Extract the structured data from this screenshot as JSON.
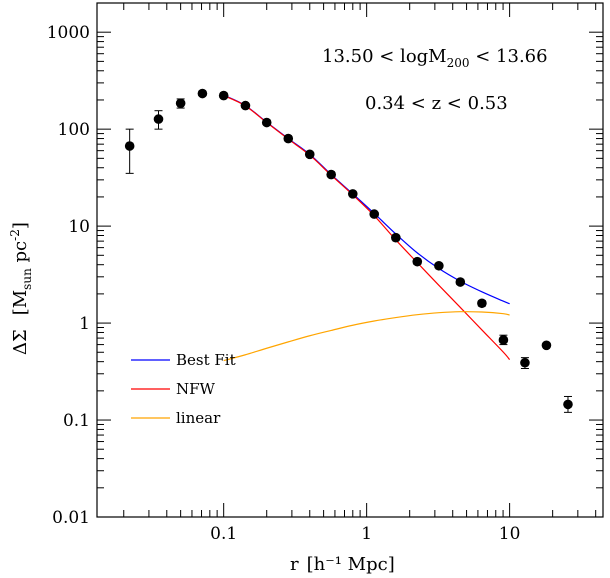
{
  "chart_data": {
    "type": "scatter",
    "xlabel_main": "r",
    "xlabel_unit": "[h⁻¹ Mpc]",
    "ylabel_main": "ΔΣ",
    "ylabel_unit_open": "[M",
    "ylabel_unit_sub": "sun",
    "ylabel_unit_mid": "  pc",
    "ylabel_unit_sup": "-2",
    "ylabel_unit_close": "]",
    "x_scale": "log",
    "y_scale": "log",
    "xlim": [
      0.013,
      45
    ],
    "ylim": [
      0.01,
      2000
    ],
    "x_ticks": [
      {
        "value": 0.1,
        "label": "0.1"
      },
      {
        "value": 1,
        "label": "1"
      },
      {
        "value": 10,
        "label": "10"
      }
    ],
    "y_ticks": [
      {
        "value": 0.01,
        "label": "0.01"
      },
      {
        "value": 0.1,
        "label": "0.1"
      },
      {
        "value": 1,
        "label": "1"
      },
      {
        "value": 10,
        "label": "10"
      },
      {
        "value": 100,
        "label": "100"
      },
      {
        "value": 1000,
        "label": "1000"
      }
    ],
    "annotations": {
      "mass_left": "13.50  <  logM",
      "mass_sub": "200",
      "mass_right": "  <  13.66",
      "redshift": "0.34  <  z  <  0.53"
    },
    "points": [
      {
        "x": 0.022,
        "y": 67,
        "lo": 35,
        "hi": 100
      },
      {
        "x": 0.035,
        "y": 127,
        "lo": 100,
        "hi": 155
      },
      {
        "x": 0.05,
        "y": 185,
        "lo": 165,
        "hi": 205
      },
      {
        "x": 0.071,
        "y": 233,
        "lo": 222,
        "hi": 244
      },
      {
        "x": 0.1,
        "y": 222,
        "lo": 212,
        "hi": 232
      },
      {
        "x": 0.142,
        "y": 175,
        "lo": 168,
        "hi": 182
      },
      {
        "x": 0.2,
        "y": 117,
        "lo": 112,
        "hi": 122
      },
      {
        "x": 0.283,
        "y": 80,
        "lo": 76,
        "hi": 84
      },
      {
        "x": 0.4,
        "y": 55,
        "lo": 52.5,
        "hi": 57.5
      },
      {
        "x": 0.565,
        "y": 34,
        "lo": 32.5,
        "hi": 35.5
      },
      {
        "x": 0.8,
        "y": 21.5,
        "lo": 20.5,
        "hi": 22.5
      },
      {
        "x": 1.13,
        "y": 13.3,
        "lo": 12.7,
        "hi": 13.9
      },
      {
        "x": 1.6,
        "y": 7.6,
        "lo": 7.2,
        "hi": 8.0
      },
      {
        "x": 2.26,
        "y": 4.3,
        "lo": 4.05,
        "hi": 4.55
      },
      {
        "x": 3.2,
        "y": 3.9,
        "lo": 3.7,
        "hi": 4.1
      },
      {
        "x": 4.52,
        "y": 2.65,
        "lo": 2.5,
        "hi": 2.8
      },
      {
        "x": 6.4,
        "y": 1.6,
        "lo": 1.5,
        "hi": 1.7
      },
      {
        "x": 9.05,
        "y": 0.67,
        "lo": 0.6,
        "hi": 0.75
      },
      {
        "x": 12.8,
        "y": 0.39,
        "lo": 0.34,
        "hi": 0.44
      },
      {
        "x": 18.1,
        "y": 0.59,
        "lo": 0.56,
        "hi": 0.62
      },
      {
        "x": 25.6,
        "y": 0.145,
        "lo": 0.12,
        "hi": 0.175
      }
    ],
    "series": [
      {
        "name": "Best Fit",
        "color": "#0000ff",
        "x": [
          0.1,
          0.141,
          0.2,
          0.283,
          0.4,
          0.565,
          0.8,
          1.13,
          1.6,
          2.26,
          3.2,
          4.52,
          6.4,
          9.05,
          10
        ],
        "y": [
          224,
          176,
          118,
          80,
          55,
          34,
          21.5,
          13.5,
          8.3,
          5.3,
          3.65,
          2.7,
          2.1,
          1.68,
          1.58
        ]
      },
      {
        "name": "NFW",
        "color": "#ff0000",
        "x": [
          0.1,
          0.141,
          0.2,
          0.283,
          0.4,
          0.565,
          0.8,
          1.13,
          1.6,
          2.26,
          3.2,
          4.52,
          6.4,
          9.05,
          10
        ],
        "y": [
          222,
          175,
          117,
          79,
          54,
          33.5,
          21,
          12.8,
          7.2,
          4.2,
          2.45,
          1.45,
          0.85,
          0.5,
          0.42
        ]
      },
      {
        "name": "linear",
        "color": "#ffa500",
        "x": [
          0.1,
          0.141,
          0.2,
          0.283,
          0.4,
          0.565,
          0.8,
          1.13,
          1.6,
          2.26,
          3.2,
          4.52,
          6.4,
          9.05,
          10
        ],
        "y": [
          0.41,
          0.47,
          0.55,
          0.64,
          0.74,
          0.84,
          0.95,
          1.05,
          1.14,
          1.22,
          1.28,
          1.31,
          1.3,
          1.25,
          1.21
        ]
      }
    ],
    "legend_position": "bottom-left",
    "point_color": "#000000"
  }
}
